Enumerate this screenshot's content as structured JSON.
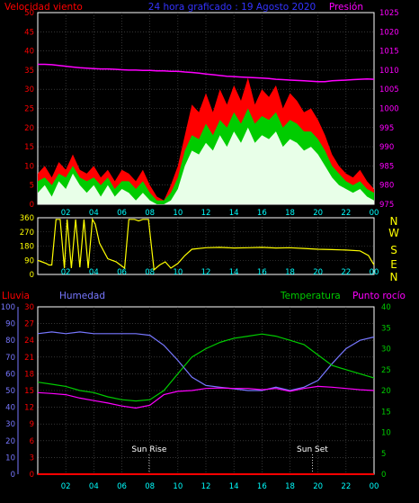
{
  "top_header": {
    "left_title": "Velocidad viento",
    "center_title": "24 hora graficado : 19 Agosto 2020",
    "right_title": "Presión"
  },
  "bottom_header": {
    "lluvia": "Lluvia",
    "humedad": "Humedad",
    "temperatura": "Temperatura",
    "punto_rocio": "Punto rocío"
  },
  "compass": [
    "N",
    "W",
    "S",
    "E",
    "N"
  ],
  "annotations": {
    "sunrise": "Sun Rise",
    "sunset": "Sun Set"
  },
  "colors": {
    "wind_gust": "#ff0000",
    "wind_avg": "#00cc00",
    "wind_low": "#e8ffe8",
    "pressure": "#ff00ff",
    "direction": "#ffff00",
    "humidity": "#7777ff",
    "temperature": "#00cc00",
    "dewpoint": "#ff00ff",
    "rain": "#ff0000",
    "grid": "#555555",
    "axis": "#ffffff",
    "x_labels": "#00ffff"
  },
  "chart_data": [
    {
      "type": "area",
      "id": "wind-pressure",
      "x_ticks": [
        "02",
        "04",
        "06",
        "08",
        "10",
        "12",
        "14",
        "16",
        "18",
        "20",
        "22",
        "00"
      ],
      "y_left": {
        "ticks": [
          0,
          5,
          10,
          15,
          20,
          25,
          30,
          35,
          40,
          45,
          50
        ],
        "ylim": [
          0,
          50
        ]
      },
      "y_right": {
        "ticks": [
          975,
          980,
          985,
          990,
          995,
          1000,
          1005,
          1010,
          1015,
          1020,
          1025
        ],
        "ylim": [
          975,
          1025
        ]
      },
      "x_hours": [
        0,
        0.5,
        1,
        1.5,
        2,
        2.5,
        3,
        3.5,
        4,
        4.5,
        5,
        5.5,
        6,
        6.5,
        7,
        7.5,
        8,
        8.5,
        9,
        9.5,
        10,
        10.5,
        11,
        11.5,
        12,
        12.5,
        13,
        13.5,
        14,
        14.5,
        15,
        15.5,
        16,
        16.5,
        17,
        17.5,
        18,
        18.5,
        19,
        19.5,
        20,
        20.5,
        21,
        21.5,
        22,
        22.5,
        23,
        23.5,
        24
      ],
      "gust": [
        8,
        10,
        7,
        11,
        9,
        13,
        9,
        8,
        10,
        7,
        9,
        6,
        9,
        8,
        6,
        9,
        5,
        2,
        1,
        5,
        10,
        18,
        26,
        24,
        29,
        24,
        30,
        26,
        31,
        27,
        33,
        26,
        30,
        28,
        31,
        25,
        29,
        27,
        24,
        25,
        22,
        18,
        13,
        10,
        8,
        7,
        9,
        6,
        4
      ],
      "avg": [
        6,
        7,
        5,
        8,
        7,
        10,
        7,
        6,
        7,
        5,
        7,
        4,
        6,
        6,
        4,
        6,
        3,
        1,
        1,
        3,
        7,
        14,
        18,
        17,
        21,
        18,
        22,
        20,
        24,
        21,
        25,
        21,
        23,
        22,
        24,
        20,
        22,
        21,
        19,
        19,
        17,
        14,
        10,
        8,
        6,
        5,
        6,
        4,
        3
      ],
      "low": [
        3,
        5,
        2,
        6,
        4,
        8,
        5,
        3,
        5,
        2,
        5,
        2,
        4,
        3,
        1,
        3,
        1,
        0,
        0,
        1,
        4,
        10,
        14,
        13,
        16,
        14,
        18,
        15,
        19,
        16,
        20,
        16,
        18,
        17,
        19,
        15,
        17,
        16,
        14,
        15,
        13,
        10,
        7,
        5,
        4,
        3,
        4,
        2,
        1
      ],
      "pressure": [
        1011.5,
        1011.5,
        1011.4,
        1011.2,
        1011,
        1010.8,
        1010.6,
        1010.5,
        1010.4,
        1010.3,
        1010.3,
        1010.2,
        1010.1,
        1010,
        1010,
        1009.9,
        1009.9,
        1009.8,
        1009.8,
        1009.7,
        1009.7,
        1009.5,
        1009.4,
        1009.2,
        1009,
        1008.8,
        1008.6,
        1008.4,
        1008.3,
        1008.2,
        1008.1,
        1008,
        1007.9,
        1007.8,
        1007.6,
        1007.5,
        1007.4,
        1007.3,
        1007.2,
        1007.1,
        1007,
        1007,
        1007.2,
        1007.3,
        1007.4,
        1007.5,
        1007.6,
        1007.7,
        1007.6
      ]
    },
    {
      "type": "line",
      "id": "wind-direction",
      "x_ticks": [
        "02",
        "04",
        "06",
        "08",
        "10",
        "12",
        "14",
        "16",
        "18",
        "20",
        "22",
        "00"
      ],
      "y_ticks": [
        0,
        90,
        180,
        270,
        360
      ],
      "ylim": [
        0,
        360
      ],
      "x_hours": [
        0,
        0.3,
        0.6,
        0.8,
        1.0,
        1.3,
        1.6,
        1.9,
        2.1,
        2.4,
        2.7,
        3.0,
        3.3,
        3.6,
        3.9,
        4.1,
        4.4,
        4.7,
        5.0,
        5.3,
        5.6,
        5.9,
        6.2,
        6.5,
        6.9,
        7.2,
        7.5,
        7.9,
        8.3,
        8.7,
        9.1,
        9.5,
        10.0,
        10.5,
        11,
        12,
        13,
        14,
        15,
        16,
        17,
        18,
        19,
        20,
        21,
        22,
        23,
        23.6,
        24
      ],
      "values": [
        90,
        80,
        70,
        60,
        60,
        350,
        350,
        40,
        350,
        40,
        350,
        45,
        350,
        40,
        350,
        320,
        200,
        150,
        100,
        90,
        80,
        60,
        40,
        350,
        350,
        340,
        350,
        350,
        30,
        60,
        80,
        40,
        70,
        120,
        160,
        170,
        172,
        168,
        170,
        172,
        168,
        170,
        165,
        160,
        158,
        155,
        150,
        120,
        60
      ]
    },
    {
      "type": "line",
      "id": "humidity-temperature",
      "x_ticks": [
        "02",
        "04",
        "06",
        "08",
        "10",
        "12",
        "14",
        "16",
        "18",
        "20",
        "22",
        "00"
      ],
      "y_humidity": {
        "ticks": [
          0,
          10,
          20,
          30,
          40,
          50,
          60,
          70,
          80,
          90,
          100
        ],
        "ylim": [
          0,
          100
        ]
      },
      "y_rain": {
        "ticks": [
          0,
          3,
          6,
          9,
          12,
          15,
          18,
          21,
          24,
          27,
          30
        ],
        "ylim": [
          0,
          30
        ]
      },
      "y_temperature": {
        "ticks": [
          0,
          5,
          10,
          15,
          20,
          25,
          30,
          35,
          40
        ],
        "ylim": [
          0,
          40
        ]
      },
      "sunrise_hour": 7.95,
      "sunset_hour": 19.6,
      "x_hours": [
        0,
        1,
        2,
        3,
        4,
        5,
        6,
        7,
        8,
        9,
        10,
        11,
        12,
        13,
        14,
        15,
        16,
        17,
        18,
        19,
        20,
        21,
        22,
        23,
        24
      ],
      "humidity": [
        84,
        85,
        84,
        85,
        84,
        84,
        84,
        84,
        83,
        77,
        68,
        58,
        53,
        52,
        51,
        50,
        50,
        52,
        50,
        52,
        56,
        66,
        75,
        80,
        82
      ],
      "temperature": [
        22,
        21.5,
        21,
        20,
        19.5,
        18.5,
        17.8,
        17.5,
        17.8,
        20,
        24,
        28,
        30,
        31.5,
        32.5,
        33,
        33.5,
        33,
        32,
        31,
        28.5,
        26,
        25,
        24,
        23
      ],
      "dewpoint": [
        19.5,
        19.3,
        19,
        18.2,
        17.6,
        17,
        16.3,
        15.8,
        16.5,
        19,
        19.8,
        20,
        20.5,
        20.6,
        20.5,
        20.5,
        20.2,
        20.5,
        19.8,
        20.5,
        21,
        20.8,
        20.5,
        20.2,
        20
      ],
      "rain": [
        0,
        0,
        0,
        0,
        0,
        0,
        0,
        0,
        0,
        0,
        0,
        0,
        0,
        0,
        0,
        0,
        0,
        0,
        0,
        0,
        0,
        0,
        0,
        0,
        0
      ]
    }
  ]
}
